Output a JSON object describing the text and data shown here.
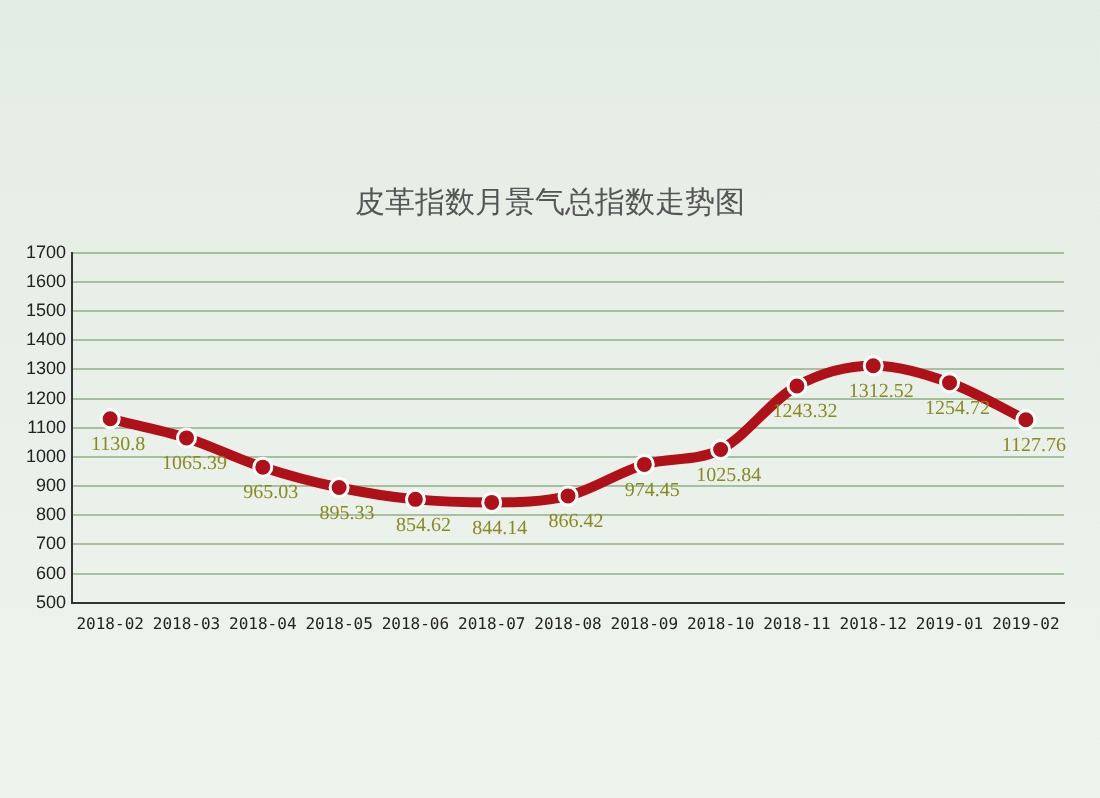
{
  "chart_data": {
    "type": "line",
    "title": "皮革指数月景气总指数走势图",
    "categories": [
      "2018-02",
      "2018-03",
      "2018-04",
      "2018-05",
      "2018-06",
      "2018-07",
      "2018-08",
      "2018-09",
      "2018-10",
      "2018-11",
      "2018-12",
      "2019-01",
      "2019-02"
    ],
    "series": [
      {
        "color": "#b01018",
        "values": [
          1130.8,
          1065.39,
          965.03,
          895.33,
          854.62,
          844.14,
          866.42,
          974.45,
          1025.84,
          1243.32,
          1312.52,
          1254.72,
          1127.76
        ]
      }
    ],
    "ylim": [
      500,
      1700
    ],
    "yticks": [
      500,
      600,
      700,
      800,
      900,
      1000,
      1100,
      1200,
      1300,
      1400,
      1500,
      1600,
      1700
    ],
    "grid": "y",
    "legend": false,
    "marker": "circle",
    "data_labels": true
  }
}
